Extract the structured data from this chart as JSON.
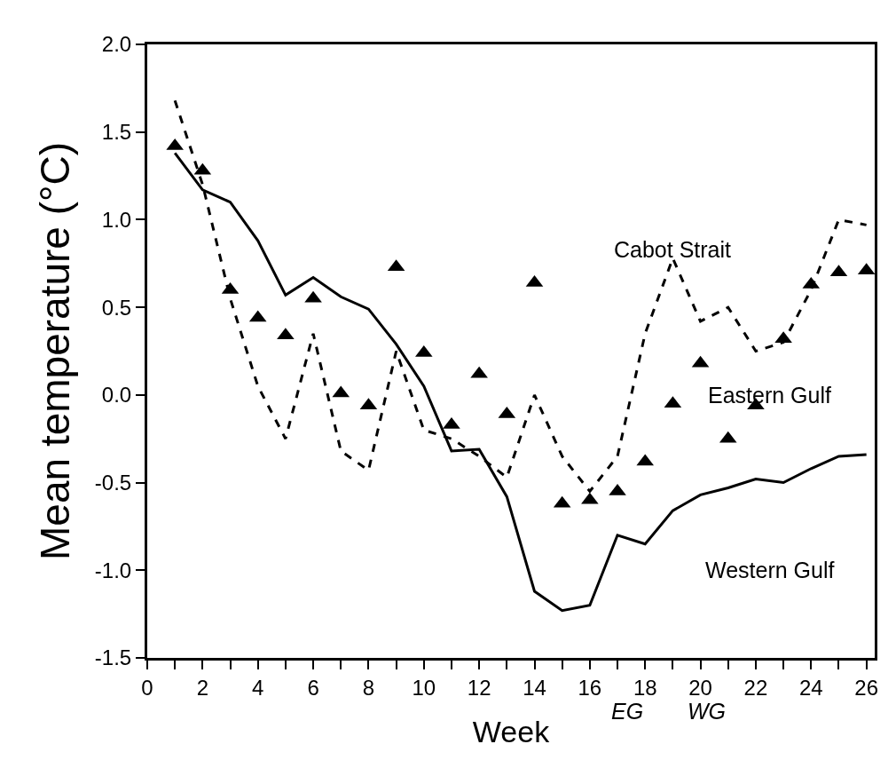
{
  "chart_data": {
    "type": "line",
    "xlabel": "Week",
    "ylabel": "Mean temperature (°C)",
    "x": [
      1,
      2,
      3,
      4,
      5,
      6,
      7,
      8,
      9,
      10,
      11,
      12,
      13,
      14,
      15,
      16,
      17,
      18,
      19,
      20,
      21,
      22,
      23,
      24,
      25,
      26
    ],
    "series": [
      {
        "name": "Cabot Strait",
        "type": "line",
        "line_style": "dashed",
        "marker": "none",
        "color": "#000000",
        "values": [
          1.68,
          1.2,
          0.55,
          0.05,
          -0.25,
          0.35,
          -0.32,
          -0.43,
          0.25,
          -0.2,
          -0.25,
          -0.35,
          -0.47,
          0.0,
          -0.35,
          -0.55,
          -0.35,
          0.35,
          0.78,
          0.42,
          0.5,
          0.25,
          0.3,
          0.6,
          1.0,
          0.97
        ]
      },
      {
        "name": "Eastern Gulf",
        "type": "scatter",
        "marker": "triangle",
        "color": "#000000",
        "values": [
          1.42,
          1.28,
          0.6,
          0.44,
          0.34,
          0.55,
          0.01,
          -0.06,
          0.73,
          0.24,
          -0.17,
          0.12,
          -0.11,
          0.64,
          -0.62,
          -0.6,
          -0.55,
          -0.38,
          -0.05,
          0.18,
          -0.25,
          -0.06,
          0.32,
          0.63,
          0.7,
          0.71
        ]
      },
      {
        "name": "Western Gulf",
        "type": "line",
        "line_style": "solid",
        "marker": "none",
        "color": "#000000",
        "values": [
          1.38,
          1.17,
          1.1,
          0.88,
          0.57,
          0.67,
          0.56,
          0.49,
          0.29,
          0.05,
          -0.32,
          -0.31,
          -0.58,
          -1.12,
          -1.23,
          -1.2,
          -0.8,
          -0.85,
          -0.66,
          -0.57,
          -0.53,
          -0.48,
          -0.5,
          -0.42,
          -0.35,
          -0.34
        ]
      }
    ],
    "annotations": [
      "EG",
      "WG"
    ],
    "xlim": [
      0,
      26.3
    ],
    "xticks": [
      0,
      {
        "value": 1,
        "label": null
      },
      2,
      {
        "value": 3,
        "label": null
      },
      4,
      {
        "value": 5,
        "label": null
      },
      6,
      {
        "value": 7,
        "label": null
      },
      8,
      {
        "value": 9,
        "label": null
      },
      10,
      {
        "value": 11,
        "label": null
      },
      12,
      {
        "value": 13,
        "label": null
      },
      14,
      {
        "value": 15,
        "label": null
      },
      16,
      {
        "value": 17,
        "label": null
      },
      18,
      {
        "value": 19,
        "label": null
      },
      20,
      {
        "value": 21,
        "label": null
      },
      22,
      {
        "value": 23,
        "label": null
      },
      24,
      {
        "value": 25,
        "label": null
      },
      26
    ],
    "ylim": [
      -1.5,
      2.0
    ],
    "yticks": [
      -1.5,
      {
        "value": -1,
        "label": "-1.0"
      },
      -0.5,
      {
        "value": 0,
        "label": "0.0"
      },
      0.5,
      {
        "value": 1,
        "label": "1.0"
      },
      1.5,
      {
        "value": 2,
        "label": "2.0"
      }
    ],
    "grid": false,
    "legend": false
  }
}
